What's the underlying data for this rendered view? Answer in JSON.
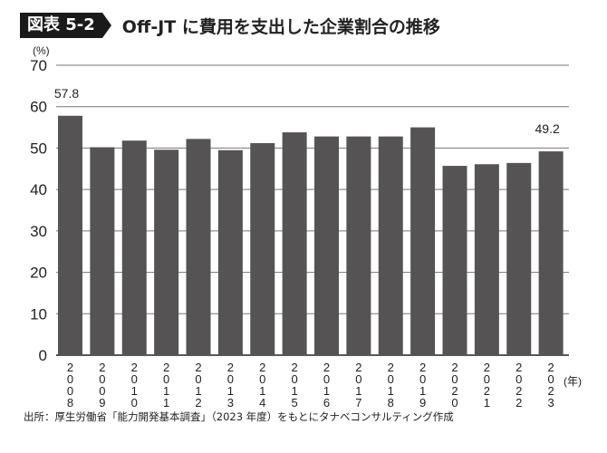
{
  "chart_data": {
    "type": "bar",
    "figure_label": "図表 5-2",
    "title": "Off-JT に費用を支出した企業割合の推移",
    "ylabel": "(%)",
    "xlabel": "(年)",
    "ylim": [
      0,
      70
    ],
    "yticks": [
      0,
      10,
      20,
      30,
      40,
      50,
      60,
      70
    ],
    "grid": true,
    "categories": [
      "2008",
      "2009",
      "2010",
      "2011",
      "2012",
      "2013",
      "2014",
      "2015",
      "2016",
      "2017",
      "2018",
      "2019",
      "2020",
      "2021",
      "2022",
      "2023"
    ],
    "values": [
      57.8,
      50.2,
      51.8,
      49.6,
      52.2,
      49.5,
      51.2,
      53.8,
      52.8,
      52.8,
      52.8,
      55.0,
      45.7,
      46.1,
      46.4,
      49.2
    ],
    "data_labels": [
      {
        "category": "2008",
        "text": "57.8"
      },
      {
        "category": "2023",
        "text": "49.2"
      }
    ],
    "source": "出所：厚生労働省「能力開発基本調査」（2023 年度）をもとにタナベコンサルティング作成",
    "bar_color": "#555354"
  }
}
